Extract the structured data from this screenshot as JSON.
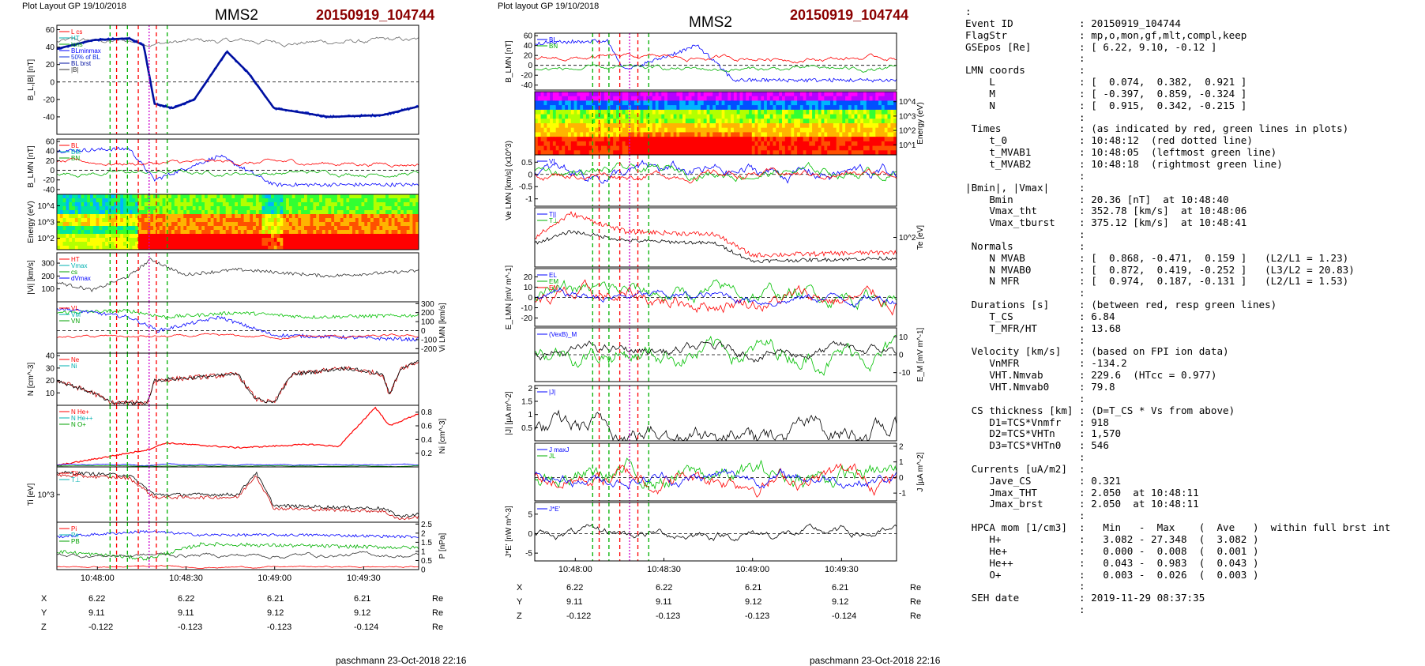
{
  "headers": {
    "left_layout": "Plot Layout GP 19/10/2018",
    "right_layout": "Plot layout GP 19/10/2018",
    "spacecraft": "MMS2",
    "event": "20150919_104744"
  },
  "footer": {
    "left": "paschmann 23-Oct-2018 22:16",
    "right": "paschmann 23-Oct-2018 22:16"
  },
  "time_ticks": [
    "10:48:00",
    "10:48:30",
    "10:49:00",
    "10:49:30"
  ],
  "coords": {
    "rows": [
      {
        "label": "X",
        "values": [
          "6.22",
          "6.22",
          "6.21",
          "6.21"
        ],
        "unit": "Re"
      },
      {
        "label": "Y",
        "values": [
          "9.11",
          "9.11",
          "9.12",
          "9.12"
        ],
        "unit": "Re"
      },
      {
        "label": "Z",
        "values": [
          "-0.122",
          "-0.123",
          "-0.123",
          "-0.124"
        ],
        "unit": "Re"
      }
    ]
  },
  "chart_data": [
    {
      "type": "line",
      "column": "left",
      "panels": [
        {
          "id": "BL",
          "ylabel": "B_L,|B| [nT]",
          "ylim": [
            -60,
            65
          ],
          "ticks": [
            60,
            40,
            20,
            0,
            -20,
            -40
          ],
          "legend": [
            "L cs",
            "HT",
            "ions",
            "BLminmax",
            "50% of BL",
            "BL brst",
            "|B|"
          ],
          "series": [
            {
              "name": "|B|",
              "color": "#777777",
              "base": 45,
              "amp": 6
            },
            {
              "name": "BL brst",
              "color": "#1030e0",
              "values_knots": [
                [
                  0,
                  38
                ],
                [
                  0.1,
                  48
                ],
                [
                  0.2,
                  50
                ],
                [
                  0.24,
                  42
                ],
                [
                  0.27,
                  -25
                ],
                [
                  0.32,
                  -30
                ],
                [
                  0.38,
                  -20
                ],
                [
                  0.47,
                  35
                ],
                [
                  0.53,
                  10
                ],
                [
                  0.6,
                  -30
                ],
                [
                  0.75,
                  -40
                ],
                [
                  0.9,
                  -38
                ],
                [
                  1,
                  -28
                ]
              ]
            }
          ]
        },
        {
          "id": "BLMN",
          "ylabel": "B_LMN [nT]",
          "ylim": [
            -50,
            65
          ],
          "ticks": [
            60,
            40,
            20,
            0,
            -20,
            -40
          ],
          "legend": [
            "BL",
            "BM",
            "BN"
          ]
        },
        {
          "id": "ionspec",
          "ylabel": "Energy (eV)",
          "ticks": [
            "10^4",
            "10^3",
            "10^2"
          ],
          "type": "heatmap"
        },
        {
          "id": "Vi",
          "ylabel": "|Vi| [km/s]",
          "ylim": [
            0,
            380
          ],
          "ticks": [
            300,
            200,
            100
          ],
          "legend": [
            "HT",
            "Vmax",
            "cs",
            "dVmax"
          ]
        },
        {
          "id": "ViLMN",
          "ylabel": "Vi LMN [km/s]",
          "ylim": [
            -250,
            320
          ],
          "ticks": [
            300,
            200,
            100,
            0,
            -100,
            -200
          ],
          "legend": [
            "VL",
            "VM",
            "VN"
          ]
        },
        {
          "id": "N",
          "ylabel": "N [cm^-3]",
          "ylim": [
            0,
            42
          ],
          "ticks": [
            40,
            30,
            20,
            10
          ],
          "legend": [
            "Ne",
            "Ni"
          ]
        },
        {
          "id": "Ni",
          "ylabel": "Ni [cm^-3]",
          "ylim": [
            0,
            0.9
          ],
          "ticks": [
            0.8,
            0.6,
            0.4,
            0.2
          ],
          "legend": [
            "N He+",
            "N He++",
            "N O+"
          ]
        },
        {
          "id": "Ti",
          "ylabel": "Ti [eV]",
          "ticks": [
            "10^3"
          ],
          "legend": [
            "T||",
            "T⊥"
          ]
        },
        {
          "id": "P",
          "ylabel": "P [nPa]",
          "ylim": [
            0,
            2.6
          ],
          "ticks": [
            2.5,
            2.0,
            1.5,
            1.0,
            0.5,
            0.0
          ],
          "legend": [
            "Pi",
            "Pe",
            "PB"
          ]
        }
      ]
    },
    {
      "type": "line",
      "column": "right",
      "panels": [
        {
          "id": "BLMN2",
          "ylabel": "B_LMN [nT]",
          "ylim": [
            -50,
            65
          ],
          "ticks": [
            60,
            40,
            20,
            0,
            -20,
            -40
          ],
          "legend": [
            "BL",
            "BN"
          ]
        },
        {
          "id": "espec",
          "ylabel": "Energy (eV)",
          "ticks": [
            "10^4",
            "10^3",
            "10^2",
            "10^1"
          ],
          "type": "heatmap"
        },
        {
          "id": "VeLMN",
          "ylabel": "Ve LMN [km/s] (x10^3)",
          "ylim": [
            -1.3,
            0.8
          ],
          "ticks": [
            0.5,
            0.0,
            -0.5,
            -1.0
          ],
          "legend": [
            "VL"
          ]
        },
        {
          "id": "Te",
          "ylabel": "Te [eV]",
          "ticks": [
            "10^2"
          ],
          "legend": [
            "T||",
            "T⊥"
          ]
        },
        {
          "id": "ELMN",
          "ylabel": "E_LMN [mV m^-1]",
          "ylim": [
            -28,
            28
          ],
          "ticks": [
            20,
            10,
            0,
            -10,
            -20
          ],
          "legend": [
            "EL",
            "EM",
            "EN"
          ]
        },
        {
          "id": "EM",
          "ylabel": "E_M [mV m^-1]",
          "ylim": [
            -15,
            15
          ],
          "ticks": [
            10,
            0,
            -10
          ],
          "legend": [
            "(VexB)_M"
          ]
        },
        {
          "id": "J",
          "ylabel": "|J| [µA m^-2]",
          "ylim": [
            0,
            2.1
          ],
          "ticks": [
            2.0,
            1.5,
            1.0,
            0.5
          ],
          "legend": [
            "|J|"
          ]
        },
        {
          "id": "JLMN",
          "ylabel": "J [µA m^-2]",
          "ylim": [
            -1.5,
            2.2
          ],
          "ticks": [
            2,
            1,
            0,
            -1
          ],
          "legend": [
            "J maxJ",
            "JL"
          ]
        },
        {
          "id": "JE",
          "ylabel": "J*E' [nW m^-3]",
          "ylim": [
            -7,
            8
          ],
          "ticks": [
            5,
            0,
            -5
          ],
          "legend": [
            "J*E'"
          ]
        }
      ]
    }
  ],
  "info_lines": [
    ":",
    "Event ID           : 20150919_104744",
    "FlagStr            : mp,o,mon,gf,mlt,compl,keep",
    "GSEpos [Re]        : [ 6.22, 9.10, -0.12 ]",
    "                   :",
    "LMN coords         :",
    "    L              : [  0.074,  0.382,  0.921 ]",
    "    M              : [ -0.397,  0.859, -0.324 ]",
    "    N              : [  0.915,  0.342, -0.215 ]",
    "                   :",
    " Times             : (as indicated by red, green lines in plots)",
    "    t_0            : 10:48:12  (red dotted line)",
    "    t_MVAB1        : 10:48:05  (leftmost green line)",
    "    t_MVAB2        : 10:48:18  (rightmost green line)",
    "                   :",
    "|Bmin|, |Vmax|     :",
    "    Bmin           : 20.36 [nT]  at 10:48:40",
    "    Vmax_tht       : 352.78 [km/s]  at 10:48:06",
    "    Vmax_tburst    : 375.12 [km/s]  at 10:48:41",
    "                   :",
    " Normals           :",
    "    N MVAB         : [  0.868, -0.471,  0.159 ]   (L2/L1 = 1.23)",
    "    N MVAB0        : [  0.872,  0.419, -0.252 ]   (L3/L2 = 20.83)",
    "    N MFR          : [  0.974,  0.187, -0.131 ]   (L2/L1 = 1.53)",
    "                   :",
    " Durations [s]     : (between red, resp green lines)",
    "    T_CS           : 6.84",
    "    T_MFR/HT       : 13.68",
    "                   :",
    " Velocity [km/s]   : (based on FPI ion data)",
    "    VnMFR          : -134.2",
    "    VHT.Nmvab      : 229.6  (HTcc = 0.977)",
    "    VHT.Nmvab0     : 79.8",
    "                   :",
    " CS thickness [km] : (D=T_CS * Vs from above)",
    "    D1=TCS*Vnmfr   : 918",
    "    D2=TCS*VHTn    : 1,570",
    "    D3=TCS*VHTn0   : 546",
    "                   :",
    " Currents [uA/m2]  :",
    "    Jave_CS        : 0.321",
    "    Jmax_THT       : 2.050  at 10:48:11",
    "    Jmax_brst      : 2.050  at 10:48:11",
    "                   :",
    " HPCA mom [1/cm3]  :   Min   -  Max    (  Ave   )  within full brst int",
    "    H+             :   3.082 - 27.348  (  3.082 )",
    "    He+            :   0.000 -  0.008  (  0.001 )",
    "    He++           :   0.043 -  0.983  (  0.043 )",
    "    O+             :   0.003 -  0.026  (  0.003 )",
    "                   :",
    " SEH date          : 2019-11-29 08:37:35",
    "                   :"
  ]
}
